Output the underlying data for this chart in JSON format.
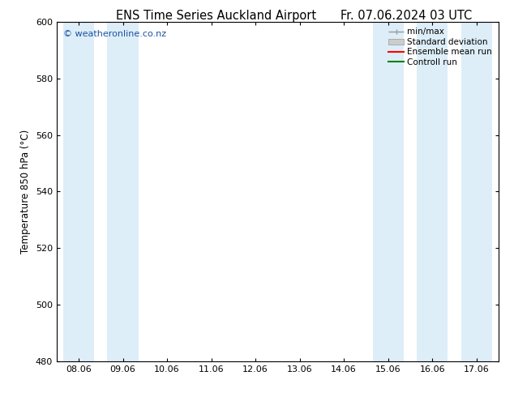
{
  "title_left": "ENS Time Series Auckland Airport",
  "title_right": "Fr. 07.06.2024 03 UTC",
  "ylabel": "Temperature 850 hPa (°C)",
  "ylim": [
    480,
    600
  ],
  "yticks": [
    480,
    500,
    520,
    540,
    560,
    580,
    600
  ],
  "x_labels": [
    "08.06",
    "09.06",
    "10.06",
    "11.06",
    "12.06",
    "13.06",
    "14.06",
    "15.06",
    "16.06",
    "17.06"
  ],
  "shaded_cols": [
    0,
    1,
    7,
    8,
    9
  ],
  "band_color": "#ddeef8",
  "bg_color": "#ffffff",
  "watermark": "© weatheronline.co.nz",
  "watermark_color": "#1a52a0",
  "legend_labels": [
    "min/max",
    "Standard deviation",
    "Ensemble mean run",
    "Controll run"
  ],
  "legend_colors": [
    "#999999",
    "#cccccc",
    "#ff0000",
    "#008000"
  ],
  "title_fontsize": 10.5,
  "ylabel_fontsize": 8.5,
  "tick_fontsize": 8,
  "watermark_fontsize": 8
}
